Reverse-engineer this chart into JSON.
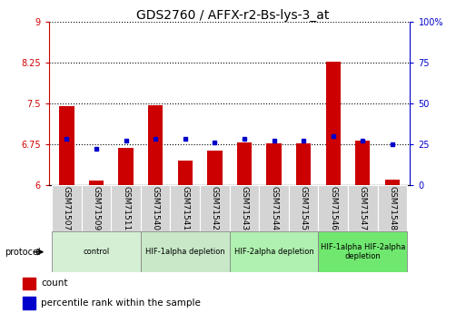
{
  "title": "GDS2760 / AFFX-r2-Bs-lys-3_at",
  "samples": [
    "GSM71507",
    "GSM71509",
    "GSM71511",
    "GSM71540",
    "GSM71541",
    "GSM71542",
    "GSM71543",
    "GSM71544",
    "GSM71545",
    "GSM71546",
    "GSM71547",
    "GSM71548"
  ],
  "counts": [
    7.44,
    6.08,
    6.68,
    7.47,
    6.45,
    6.63,
    6.78,
    6.77,
    6.76,
    8.27,
    6.82,
    6.09
  ],
  "percentile_ranks": [
    28,
    22,
    27,
    28,
    28,
    26,
    28,
    27,
    27,
    30,
    27,
    25
  ],
  "ylim_left": [
    6,
    9
  ],
  "ylim_right": [
    0,
    100
  ],
  "yticks_left": [
    6,
    6.75,
    7.5,
    8.25,
    9
  ],
  "yticks_right": [
    0,
    25,
    50,
    75,
    100
  ],
  "ytick_labels_left": [
    "6",
    "6.75",
    "7.5",
    "8.25",
    "9"
  ],
  "ytick_labels_right": [
    "0",
    "25",
    "50",
    "75",
    "100%"
  ],
  "bar_color": "#cc0000",
  "dot_color": "#0000cc",
  "protocol_groups": [
    {
      "label": "control",
      "start": 0,
      "end": 2,
      "color": "#d4efd4"
    },
    {
      "label": "HIF-1alpha depletion",
      "start": 3,
      "end": 5,
      "color": "#c8e8c8"
    },
    {
      "label": "HIF-2alpha depletion",
      "start": 6,
      "end": 8,
      "color": "#b0f0b0"
    },
    {
      "label": "HIF-1alpha HIF-2alpha\ndepletion",
      "start": 9,
      "end": 11,
      "color": "#70e870"
    }
  ],
  "legend_items": [
    {
      "label": "count",
      "color": "#cc0000"
    },
    {
      "label": "percentile rank within the sample",
      "color": "#0000cc"
    }
  ],
  "protocol_label": "protocol",
  "title_fontsize": 10,
  "tick_fontsize": 7,
  "label_fontsize": 6.5,
  "bar_width": 0.5
}
